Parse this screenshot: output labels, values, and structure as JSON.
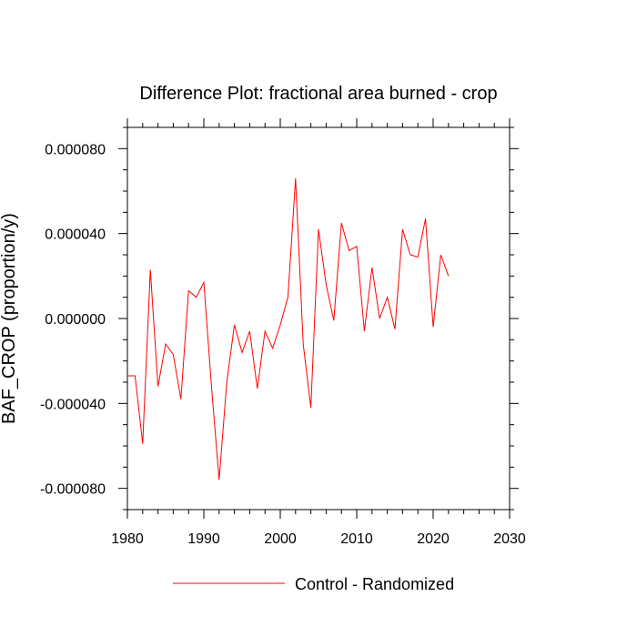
{
  "chart_data": {
    "type": "line",
    "title": "Difference Plot: fractional area burned - crop",
    "xlabel": "",
    "ylabel": "BAF_CROP  (proportion/y)",
    "xlim": [
      1980,
      2030
    ],
    "ylim": [
      -9e-05,
      9e-05
    ],
    "xticks": [
      1980,
      1990,
      2000,
      2010,
      2020,
      2030
    ],
    "xtick_labels": [
      "1980",
      "1990",
      "2000",
      "2010",
      "2020",
      "2030"
    ],
    "yticks": [
      -8e-05,
      -4e-05,
      0.0,
      4e-05,
      8e-05
    ],
    "ytick_labels": [
      "-0.000080",
      "-0.000040",
      "0.000000",
      "0.000040",
      "0.000080"
    ],
    "grid": false,
    "legend_position": "bottom-center",
    "series": [
      {
        "name": "Control - Randomized",
        "color": "#ff0000",
        "x": [
          1980,
          1981,
          1982,
          1983,
          1984,
          1985,
          1986,
          1987,
          1988,
          1989,
          1990,
          1991,
          1992,
          1993,
          1994,
          1995,
          1996,
          1997,
          1998,
          1999,
          2000,
          2001,
          2002,
          2003,
          2004,
          2005,
          2006,
          2007,
          2008,
          2009,
          2010,
          2011,
          2012,
          2013,
          2014,
          2015,
          2016,
          2017,
          2018,
          2019,
          2020,
          2021,
          2022
        ],
        "y": [
          -2.7e-05,
          -2.7e-05,
          -5.9e-05,
          2.3e-05,
          -3.2e-05,
          -1.2e-05,
          -1.7e-05,
          -3.8e-05,
          1.3e-05,
          1e-05,
          1.7e-05,
          -3.2e-05,
          -7.6e-05,
          -3e-05,
          -3e-06,
          -1.6e-05,
          -6e-06,
          -3.3e-05,
          -6e-06,
          -1.4e-05,
          -3e-06,
          1e-05,
          6.6e-05,
          -1.2e-05,
          -4.2e-05,
          4.2e-05,
          1.6e-05,
          -1e-06,
          4.5e-05,
          3.2e-05,
          3.4e-05,
          -6e-06,
          2.4e-05,
          0.0,
          1e-05,
          -5e-06,
          4.2e-05,
          3e-05,
          2.9e-05,
          4.7e-05,
          -4e-06,
          3e-05,
          2e-05
        ]
      }
    ]
  }
}
